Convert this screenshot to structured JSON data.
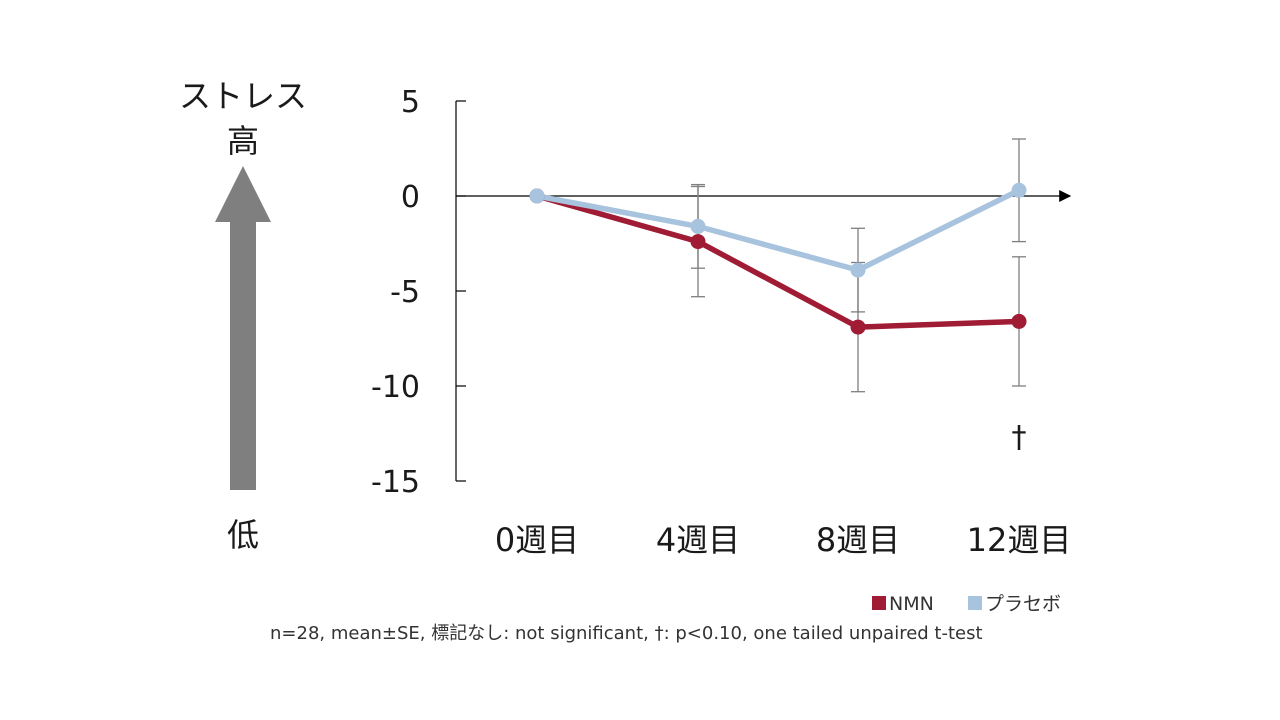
{
  "side_labels": {
    "top_title": "ストレス",
    "high": "高",
    "low": "低"
  },
  "annotation": "†",
  "footnote": "n=28, mean±SE, 標記なし: not significant, †: p<0.10, one tailed unpaired t-test",
  "chart_data": {
    "type": "line",
    "categories": [
      "0週目",
      "4週目",
      "8週目",
      "12週目"
    ],
    "ylim": [
      -15,
      5
    ],
    "yticks": [
      5,
      0,
      -5,
      -10,
      -15
    ],
    "title": "",
    "xlabel": "",
    "ylabel": "",
    "series": [
      {
        "name": "NMN",
        "color": "#a01c34",
        "marker": "circle",
        "values": [
          0,
          -2.4,
          -6.9,
          -6.6
        ],
        "error": [
          0,
          2.9,
          3.4,
          3.4
        ]
      },
      {
        "name": "プラセボ",
        "color": "#a7c3de",
        "marker": "circle",
        "values": [
          0,
          -1.6,
          -3.9,
          0.3
        ],
        "error": [
          0,
          2.2,
          2.2,
          2.7
        ]
      }
    ],
    "significance": [
      "",
      "",
      "",
      "†"
    ],
    "legend": "bottom-right",
    "grid": false
  }
}
